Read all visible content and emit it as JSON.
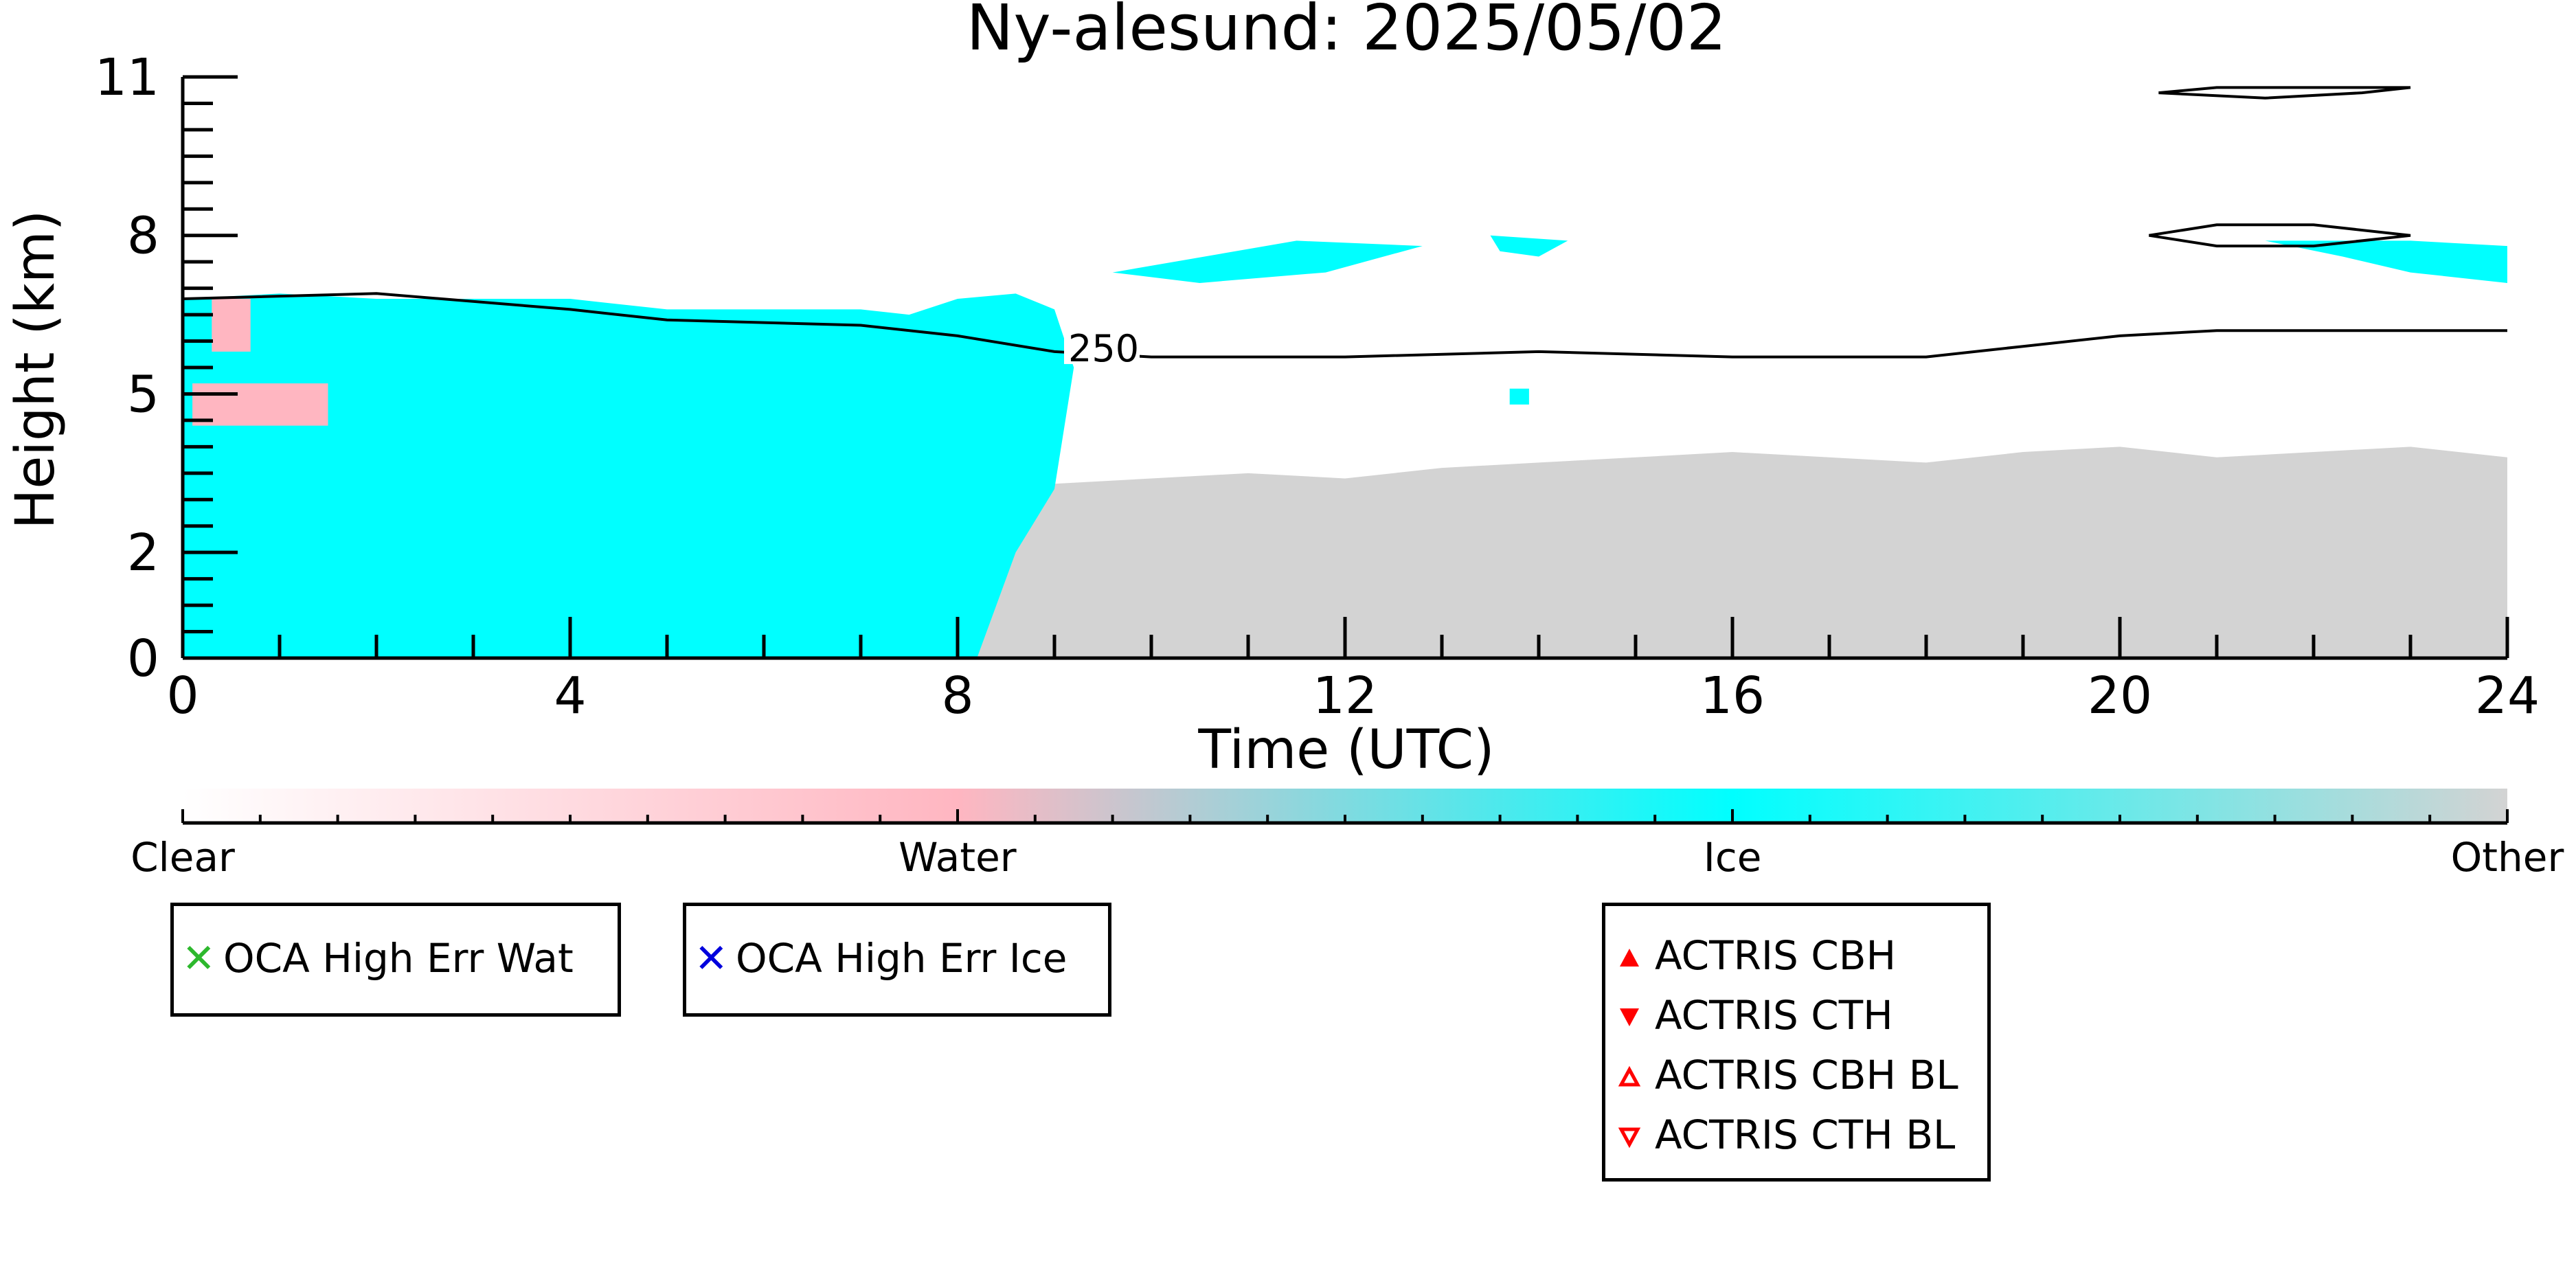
{
  "chart_data": {
    "type": "heatmap",
    "title": "Ny-alesund: 2025/05/02",
    "xlabel": "Time (UTC)",
    "ylabel": "Height (km)",
    "xlim": [
      0,
      24
    ],
    "ylim": [
      0,
      11
    ],
    "xticks": [
      0,
      4,
      8,
      12,
      16,
      20,
      24
    ],
    "yticks": [
      0,
      2,
      5,
      8,
      11
    ],
    "categories": [
      "Clear",
      "Water",
      "Ice",
      "Other"
    ],
    "category_colors": {
      "Clear": "#ffffff",
      "Water": "#ffb6c1",
      "Ice": "#00ffff",
      "Other": "#d3d3d3"
    },
    "regions": [
      {
        "category": "Other",
        "name": "boundary-layer-other",
        "top": [
          [
            0,
            3.0
          ],
          [
            1,
            2.9
          ],
          [
            2,
            3.0
          ],
          [
            3,
            2.8
          ],
          [
            4,
            2.7
          ],
          [
            5,
            2.8
          ],
          [
            6,
            2.9
          ],
          [
            7,
            3.0
          ],
          [
            8.2,
            3.4
          ],
          [
            9,
            3.3
          ],
          [
            10,
            3.4
          ],
          [
            11,
            3.5
          ],
          [
            12,
            3.4
          ],
          [
            13,
            3.6
          ],
          [
            14,
            3.7
          ],
          [
            15,
            3.8
          ],
          [
            16,
            3.9
          ],
          [
            17,
            3.8
          ],
          [
            18,
            3.7
          ],
          [
            19,
            3.9
          ],
          [
            20,
            4.0
          ],
          [
            21,
            3.8
          ],
          [
            22,
            3.9
          ],
          [
            23,
            4.0
          ],
          [
            24,
            3.8
          ]
        ]
      },
      {
        "category": "Ice",
        "name": "main-ice-cloud",
        "top": [
          [
            0,
            6.8
          ],
          [
            1,
            6.9
          ],
          [
            2,
            6.8
          ],
          [
            3,
            6.8
          ],
          [
            4,
            6.8
          ],
          [
            5,
            6.6
          ],
          [
            6,
            6.6
          ],
          [
            7,
            6.6
          ],
          [
            7.5,
            6.5
          ],
          [
            8,
            6.8
          ],
          [
            8.6,
            6.9
          ],
          [
            9.0,
            6.6
          ],
          [
            9.2,
            5.5
          ]
        ],
        "bottom": [
          [
            0,
            0.0
          ],
          [
            2,
            0.0
          ],
          [
            3,
            0.0
          ],
          [
            4,
            0.0
          ],
          [
            6,
            0.0
          ],
          [
            7,
            0.0
          ],
          [
            8.2,
            0.0
          ],
          [
            8.6,
            2.0
          ],
          [
            9.0,
            3.2
          ],
          [
            9.2,
            5.5
          ]
        ]
      },
      {
        "category": "Water",
        "name": "water-layer-early",
        "top": [
          [
            0.3,
            6.8
          ],
          [
            0.7,
            6.8
          ],
          [
            0.7,
            5.8
          ],
          [
            0.3,
            5.8
          ]
        ]
      },
      {
        "category": "Water",
        "name": "water-layer-mid",
        "top": [
          [
            0.1,
            5.2
          ],
          [
            1.5,
            5.2
          ],
          [
            1.5,
            4.4
          ],
          [
            0.1,
            4.4
          ]
        ]
      },
      {
        "category": "Ice",
        "name": "upper-ice-patch-1",
        "top": [
          [
            9.6,
            7.3
          ],
          [
            11.5,
            7.9
          ],
          [
            12.8,
            7.8
          ],
          [
            11.8,
            7.3
          ],
          [
            10.5,
            7.1
          ]
        ]
      },
      {
        "category": "Ice",
        "name": "upper-ice-patch-2",
        "top": [
          [
            13.5,
            8.0
          ],
          [
            14.3,
            7.9
          ],
          [
            14.0,
            7.6
          ],
          [
            13.6,
            7.7
          ]
        ]
      },
      {
        "category": "Ice",
        "name": "upper-ice-patch-3",
        "top": [
          [
            21.5,
            7.9
          ],
          [
            23.0,
            7.9
          ],
          [
            24,
            7.8
          ],
          [
            24,
            7.1
          ],
          [
            23.0,
            7.3
          ],
          [
            22.3,
            7.6
          ]
        ]
      },
      {
        "category": "Ice",
        "name": "small-ice-patch",
        "top": [
          [
            13.7,
            5.1
          ],
          [
            13.9,
            5.1
          ],
          [
            13.9,
            4.8
          ],
          [
            13.7,
            4.8
          ]
        ]
      }
    ],
    "contours": [
      {
        "label": "250",
        "points": [
          [
            0,
            6.8
          ],
          [
            2,
            6.9
          ],
          [
            4,
            6.6
          ],
          [
            5,
            6.4
          ],
          [
            7,
            6.3
          ],
          [
            8,
            6.1
          ],
          [
            9,
            5.8
          ],
          [
            10,
            5.7
          ],
          [
            12,
            5.7
          ],
          [
            14,
            5.8
          ],
          [
            16,
            5.7
          ],
          [
            18,
            5.7
          ],
          [
            19,
            5.9
          ],
          [
            20,
            6.1
          ],
          [
            21,
            6.2
          ],
          [
            24,
            6.2
          ]
        ]
      },
      {
        "label": "",
        "points": [
          [
            20.3,
            8.0
          ],
          [
            21,
            8.2
          ],
          [
            22,
            8.2
          ],
          [
            23,
            8.0
          ],
          [
            22,
            7.8
          ],
          [
            21,
            7.8
          ],
          [
            20.3,
            8.0
          ]
        ]
      },
      {
        "label": "",
        "points": [
          [
            20.4,
            10.7
          ],
          [
            21.5,
            10.6
          ],
          [
            22.5,
            10.7
          ],
          [
            23,
            10.8
          ],
          [
            21,
            10.8
          ],
          [
            20.4,
            10.7
          ]
        ]
      }
    ],
    "colorbar": {
      "labels": [
        "Clear",
        "Water",
        "Ice",
        "Other"
      ],
      "stops": [
        0,
        0.3333,
        0.6667,
        1.0
      ]
    },
    "legends": [
      {
        "entries": [
          {
            "label": "OCA High Err Wat",
            "marker": "x-icon",
            "color": "#2db82d"
          }
        ]
      },
      {
        "entries": [
          {
            "label": "OCA High Err Ice",
            "marker": "x-icon",
            "color": "#0000dd"
          }
        ]
      },
      {
        "entries": [
          {
            "label": "ACTRIS CBH",
            "marker": "triangle-up-filled-icon",
            "color": "#ff0000"
          },
          {
            "label": "ACTRIS CTH",
            "marker": "triangle-down-filled-icon",
            "color": "#ff0000"
          },
          {
            "label": "ACTRIS CBH BL",
            "marker": "triangle-up-open-icon",
            "color": "#ff0000"
          },
          {
            "label": "ACTRIS CTH BL",
            "marker": "triangle-down-open-icon",
            "color": "#ff0000"
          }
        ]
      }
    ]
  }
}
